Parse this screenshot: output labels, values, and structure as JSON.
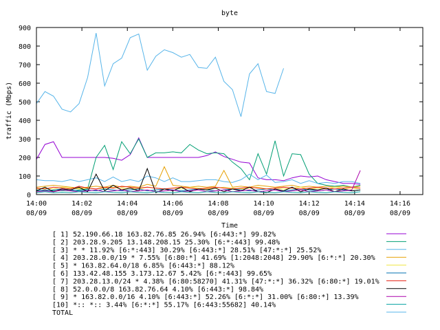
{
  "chart_data": {
    "type": "line",
    "title": "byte",
    "xlabel": "Time",
    "ylabel": "traffic (Mbps)",
    "ylim": [
      0,
      900
    ],
    "yticks": [
      0,
      100,
      200,
      300,
      400,
      500,
      600,
      700,
      800,
      900
    ],
    "xlim": [
      0,
      136
    ],
    "xticks": [
      {
        "v": 0,
        "time": "14:00",
        "date": "08/09"
      },
      {
        "v": 16,
        "time": "14:02",
        "date": "08/09"
      },
      {
        "v": 32,
        "time": "14:04",
        "date": "08/09"
      },
      {
        "v": 48,
        "time": "14:06",
        "date": "08/09"
      },
      {
        "v": 64,
        "time": "14:08",
        "date": "08/09"
      },
      {
        "v": 80,
        "time": "14:10",
        "date": "08/09"
      },
      {
        "v": 96,
        "time": "14:12",
        "date": "08/09"
      },
      {
        "v": 112,
        "time": "14:14",
        "date": "08/09"
      },
      {
        "v": 128,
        "time": "14:16",
        "date": "08/09"
      }
    ],
    "x": [
      0,
      3,
      6,
      9,
      12,
      15,
      18,
      21,
      24,
      27,
      30,
      33,
      36,
      39,
      42,
      45,
      48,
      51,
      54,
      57,
      60,
      63,
      66,
      69,
      72,
      75,
      78,
      81,
      84,
      87,
      90,
      93,
      96,
      99,
      102,
      105,
      108,
      111,
      114
    ],
    "series": [
      {
        "name": "[ 1] 52.190.66.18 163.82.76.85 26.94% [6:443:*] 99.82%",
        "color": "#9400d3",
        "values": [
          190,
          270,
          285,
          200,
          200,
          200,
          200,
          200,
          200,
          195,
          185,
          215,
          305,
          200,
          200,
          200,
          200,
          200,
          200,
          200,
          210,
          230,
          205,
          190,
          175,
          170,
          90,
          80,
          80,
          75,
          90,
          100,
          95,
          100,
          80,
          70,
          60,
          60,
          55
        ]
      },
      {
        "name": "[ 2] 203.28.9.205 13.148.208.15 25.30% [6:*:443] 99.48%",
        "color": "#009e73",
        "values": [
          20,
          25,
          20,
          22,
          20,
          25,
          30,
          200,
          265,
          135,
          285,
          220,
          300,
          200,
          225,
          225,
          230,
          225,
          270,
          240,
          220,
          225,
          220,
          175,
          140,
          80,
          220,
          110,
          290,
          100,
          220,
          215,
          110,
          60,
          50,
          45,
          50,
          40,
          50
        ]
      },
      {
        "name": "[ 3] * * 11.92% [6:*:443] 30.29% [6:443:*] 28.51% [47:*:*] 25.52%",
        "color": "#56b4e9",
        "values": [
          80,
          75,
          75,
          70,
          80,
          70,
          80,
          90,
          70,
          95,
          70,
          80,
          70,
          100,
          90,
          70,
          90,
          70,
          70,
          75,
          80,
          80,
          70,
          65,
          80,
          110,
          80,
          105,
          65,
          70,
          80,
          60,
          75,
          60,
          65,
          60,
          70,
          70,
          60
        ]
      },
      {
        "name": "[ 4] 203.28.0.0/19 * 7.55% [6:80:*] 41.69% [1:2048:2048] 29.90% [6:*:*] 20.30%",
        "color": "#e69f00",
        "values": [
          40,
          45,
          50,
          45,
          40,
          35,
          40,
          45,
          40,
          50,
          40,
          45,
          40,
          55,
          45,
          150,
          50,
          45,
          40,
          45,
          40,
          45,
          130,
          40,
          45,
          40,
          50,
          45,
          40,
          45,
          50,
          40,
          45,
          40,
          45,
          40,
          45,
          40,
          45
        ]
      },
      {
        "name": "[ 5] * 163.82.64.0/18 6.85% [6:443:*] 88.12%",
        "color": "#f0e442",
        "values": [
          30,
          35,
          30,
          40,
          35,
          30,
          35,
          30,
          35,
          40,
          30,
          35,
          30,
          40,
          35,
          30,
          35,
          30,
          40,
          35,
          30,
          35,
          40,
          35,
          30,
          35,
          40,
          30,
          35,
          30,
          35,
          40,
          30,
          35,
          30,
          40,
          35,
          30,
          35
        ]
      },
      {
        "name": "[ 6] 133.42.48.155 3.173.12.67 5.42% [6:*:443] 99.65%",
        "color": "#0072b2",
        "values": [
          25,
          20,
          25,
          30,
          25,
          20,
          25,
          20,
          30,
          25,
          20,
          25,
          30,
          20,
          25,
          30,
          25,
          20,
          25,
          30,
          25,
          20,
          25,
          30,
          25,
          20,
          25,
          30,
          25,
          20,
          25,
          30,
          25,
          20,
          25,
          30,
          25,
          20,
          25
        ]
      },
      {
        "name": "[ 7] 203.28.13.0/24 * 4.38% [6:80:58270] 41.31% [47:*:*] 36.32% [6:80:*] 19.01%",
        "color": "#e51e10",
        "values": [
          35,
          30,
          40,
          35,
          30,
          45,
          35,
          30,
          40,
          35,
          45,
          40,
          35,
          40,
          35,
          30,
          35,
          40,
          35,
          30,
          35,
          40,
          35,
          30,
          35,
          40,
          35,
          30,
          35,
          40,
          35,
          30,
          35,
          40,
          35,
          30,
          35,
          40,
          35
        ]
      },
      {
        "name": "[ 8] 52.0.0.0/8 163.82.76.64 4.10% [6:443:*] 98.84%",
        "color": "#000000",
        "values": [
          20,
          40,
          15,
          30,
          25,
          40,
          15,
          110,
          20,
          50,
          25,
          35,
          20,
          140,
          10,
          30,
          20,
          40,
          15,
          30,
          25,
          35,
          15,
          30,
          20,
          40,
          15,
          10,
          30,
          20,
          40,
          15,
          30,
          25,
          35,
          15,
          30,
          20,
          25
        ]
      },
      {
        "name": "[ 9] * 163.82.0.0/16 4.10% [6:443:*] 52.26% [6:*:*] 31.00% [6:80:*] 13.39%",
        "color": "#aa00aa",
        "values": [
          15,
          20,
          15,
          25,
          20,
          15,
          20,
          25,
          15,
          20,
          25,
          15,
          20,
          25,
          15,
          20,
          25,
          15,
          20,
          25,
          15,
          20,
          25,
          15,
          20,
          25,
          15,
          20,
          25,
          15,
          20,
          25,
          15,
          20,
          25,
          15,
          20,
          25,
          130
        ]
      },
      {
        "name": "[10] *:: *:: 3.44% [6:*:*] 55.17% [6:443:55682] 40.14%",
        "color": "#00a0a0",
        "values": [
          10,
          15,
          10,
          12,
          10,
          15,
          12,
          10,
          15,
          12,
          10,
          15,
          12,
          10,
          15,
          12,
          10,
          15,
          12,
          10,
          15,
          12,
          10,
          15,
          12,
          10,
          15,
          12,
          10,
          15,
          12,
          10,
          15,
          12,
          10,
          15,
          12,
          10,
          15
        ]
      },
      {
        "name": "TOTAL",
        "color": "#56b4e9",
        "values": [
          490,
          555,
          530,
          460,
          445,
          490,
          630,
          870,
          585,
          705,
          735,
          845,
          865,
          670,
          745,
          780,
          765,
          740,
          755,
          685,
          680,
          740,
          610,
          565,
          420,
          650,
          705,
          555,
          545,
          680,
          null,
          null,
          null,
          null,
          null,
          null,
          null,
          null,
          null
        ]
      }
    ]
  }
}
